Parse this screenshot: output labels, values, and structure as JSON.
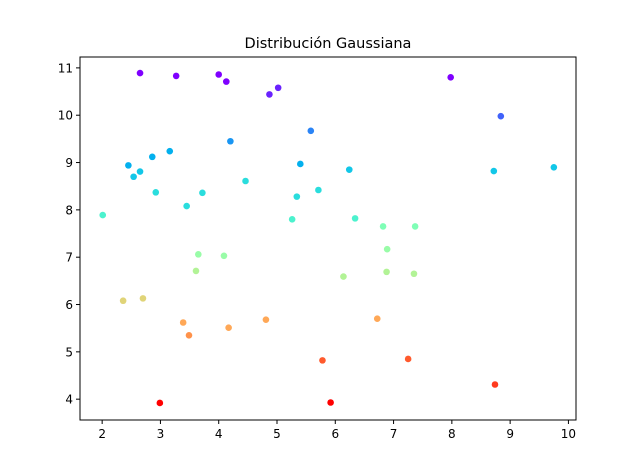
{
  "chart_data": {
    "type": "scatter",
    "title": "Distribución Gaussiana",
    "xlabel": "",
    "ylabel": "",
    "xlim": [
      1.62,
      10.13
    ],
    "ylim": [
      3.56,
      11.23
    ],
    "xticks": [
      2,
      3,
      4,
      5,
      6,
      7,
      8,
      9,
      10
    ],
    "yticks": [
      4,
      5,
      6,
      7,
      8,
      9,
      10,
      11
    ],
    "grid": false,
    "colormap": "rainbow",
    "points": [
      {
        "x": 2.65,
        "y": 10.89,
        "color": "#7f00ff"
      },
      {
        "x": 3.27,
        "y": 10.83,
        "color": "#7f00ff"
      },
      {
        "x": 4.0,
        "y": 10.86,
        "color": "#7f00ff"
      },
      {
        "x": 4.13,
        "y": 10.71,
        "color": "#7f00ff"
      },
      {
        "x": 4.87,
        "y": 10.44,
        "color": "#6a22fe"
      },
      {
        "x": 5.02,
        "y": 10.58,
        "color": "#6a22fe"
      },
      {
        "x": 7.98,
        "y": 10.8,
        "color": "#7f00ff"
      },
      {
        "x": 8.84,
        "y": 9.98,
        "color": "#4062fa"
      },
      {
        "x": 5.58,
        "y": 9.67,
        "color": "#2a84f6"
      },
      {
        "x": 4.2,
        "y": 9.45,
        "color": "#1996f3"
      },
      {
        "x": 3.16,
        "y": 9.24,
        "color": "#03b0ee"
      },
      {
        "x": 2.86,
        "y": 9.12,
        "color": "#03b0ee"
      },
      {
        "x": 2.45,
        "y": 8.94,
        "color": "#03b0ee"
      },
      {
        "x": 5.4,
        "y": 8.97,
        "color": "#03b0ee"
      },
      {
        "x": 6.24,
        "y": 8.85,
        "color": "#12c7e8"
      },
      {
        "x": 9.75,
        "y": 8.9,
        "color": "#12c7e8"
      },
      {
        "x": 8.72,
        "y": 8.82,
        "color": "#12c7e8"
      },
      {
        "x": 2.65,
        "y": 8.81,
        "color": "#12c7e8"
      },
      {
        "x": 2.54,
        "y": 8.7,
        "color": "#12c7e8"
      },
      {
        "x": 4.46,
        "y": 8.61,
        "color": "#2adddd"
      },
      {
        "x": 5.71,
        "y": 8.42,
        "color": "#2adddd"
      },
      {
        "x": 2.92,
        "y": 8.37,
        "color": "#2adddd"
      },
      {
        "x": 3.72,
        "y": 8.36,
        "color": "#2adddd"
      },
      {
        "x": 5.34,
        "y": 8.28,
        "color": "#2adddd"
      },
      {
        "x": 3.45,
        "y": 8.08,
        "color": "#2adddd"
      },
      {
        "x": 2.01,
        "y": 7.89,
        "color": "#4cf2ce"
      },
      {
        "x": 5.26,
        "y": 7.8,
        "color": "#4cf2ce"
      },
      {
        "x": 6.34,
        "y": 7.82,
        "color": "#4cf2ce"
      },
      {
        "x": 6.82,
        "y": 7.65,
        "color": "#7ffeb6"
      },
      {
        "x": 7.37,
        "y": 7.65,
        "color": "#7ffeb6"
      },
      {
        "x": 6.89,
        "y": 7.17,
        "color": "#99fca8"
      },
      {
        "x": 3.65,
        "y": 7.06,
        "color": "#99fca8"
      },
      {
        "x": 4.09,
        "y": 7.03,
        "color": "#99fca8"
      },
      {
        "x": 3.61,
        "y": 6.71,
        "color": "#b2f396"
      },
      {
        "x": 6.88,
        "y": 6.69,
        "color": "#b2f396"
      },
      {
        "x": 7.35,
        "y": 6.65,
        "color": "#b2f396"
      },
      {
        "x": 6.14,
        "y": 6.59,
        "color": "#b2f396"
      },
      {
        "x": 2.36,
        "y": 6.08,
        "color": "#e0d478"
      },
      {
        "x": 2.7,
        "y": 6.13,
        "color": "#e0d478"
      },
      {
        "x": 6.72,
        "y": 5.7,
        "color": "#ffa857"
      },
      {
        "x": 4.81,
        "y": 5.68,
        "color": "#ffa857"
      },
      {
        "x": 3.39,
        "y": 5.62,
        "color": "#ffa857"
      },
      {
        "x": 4.17,
        "y": 5.51,
        "color": "#ffa857"
      },
      {
        "x": 3.49,
        "y": 5.35,
        "color": "#ff924a"
      },
      {
        "x": 5.78,
        "y": 4.82,
        "color": "#ff5a2d"
      },
      {
        "x": 7.25,
        "y": 4.85,
        "color": "#ff5a2d"
      },
      {
        "x": 8.74,
        "y": 4.31,
        "color": "#ff3b1e"
      },
      {
        "x": 2.99,
        "y": 3.92,
        "color": "#ff0000"
      },
      {
        "x": 5.92,
        "y": 3.93,
        "color": "#ff0000"
      }
    ]
  }
}
